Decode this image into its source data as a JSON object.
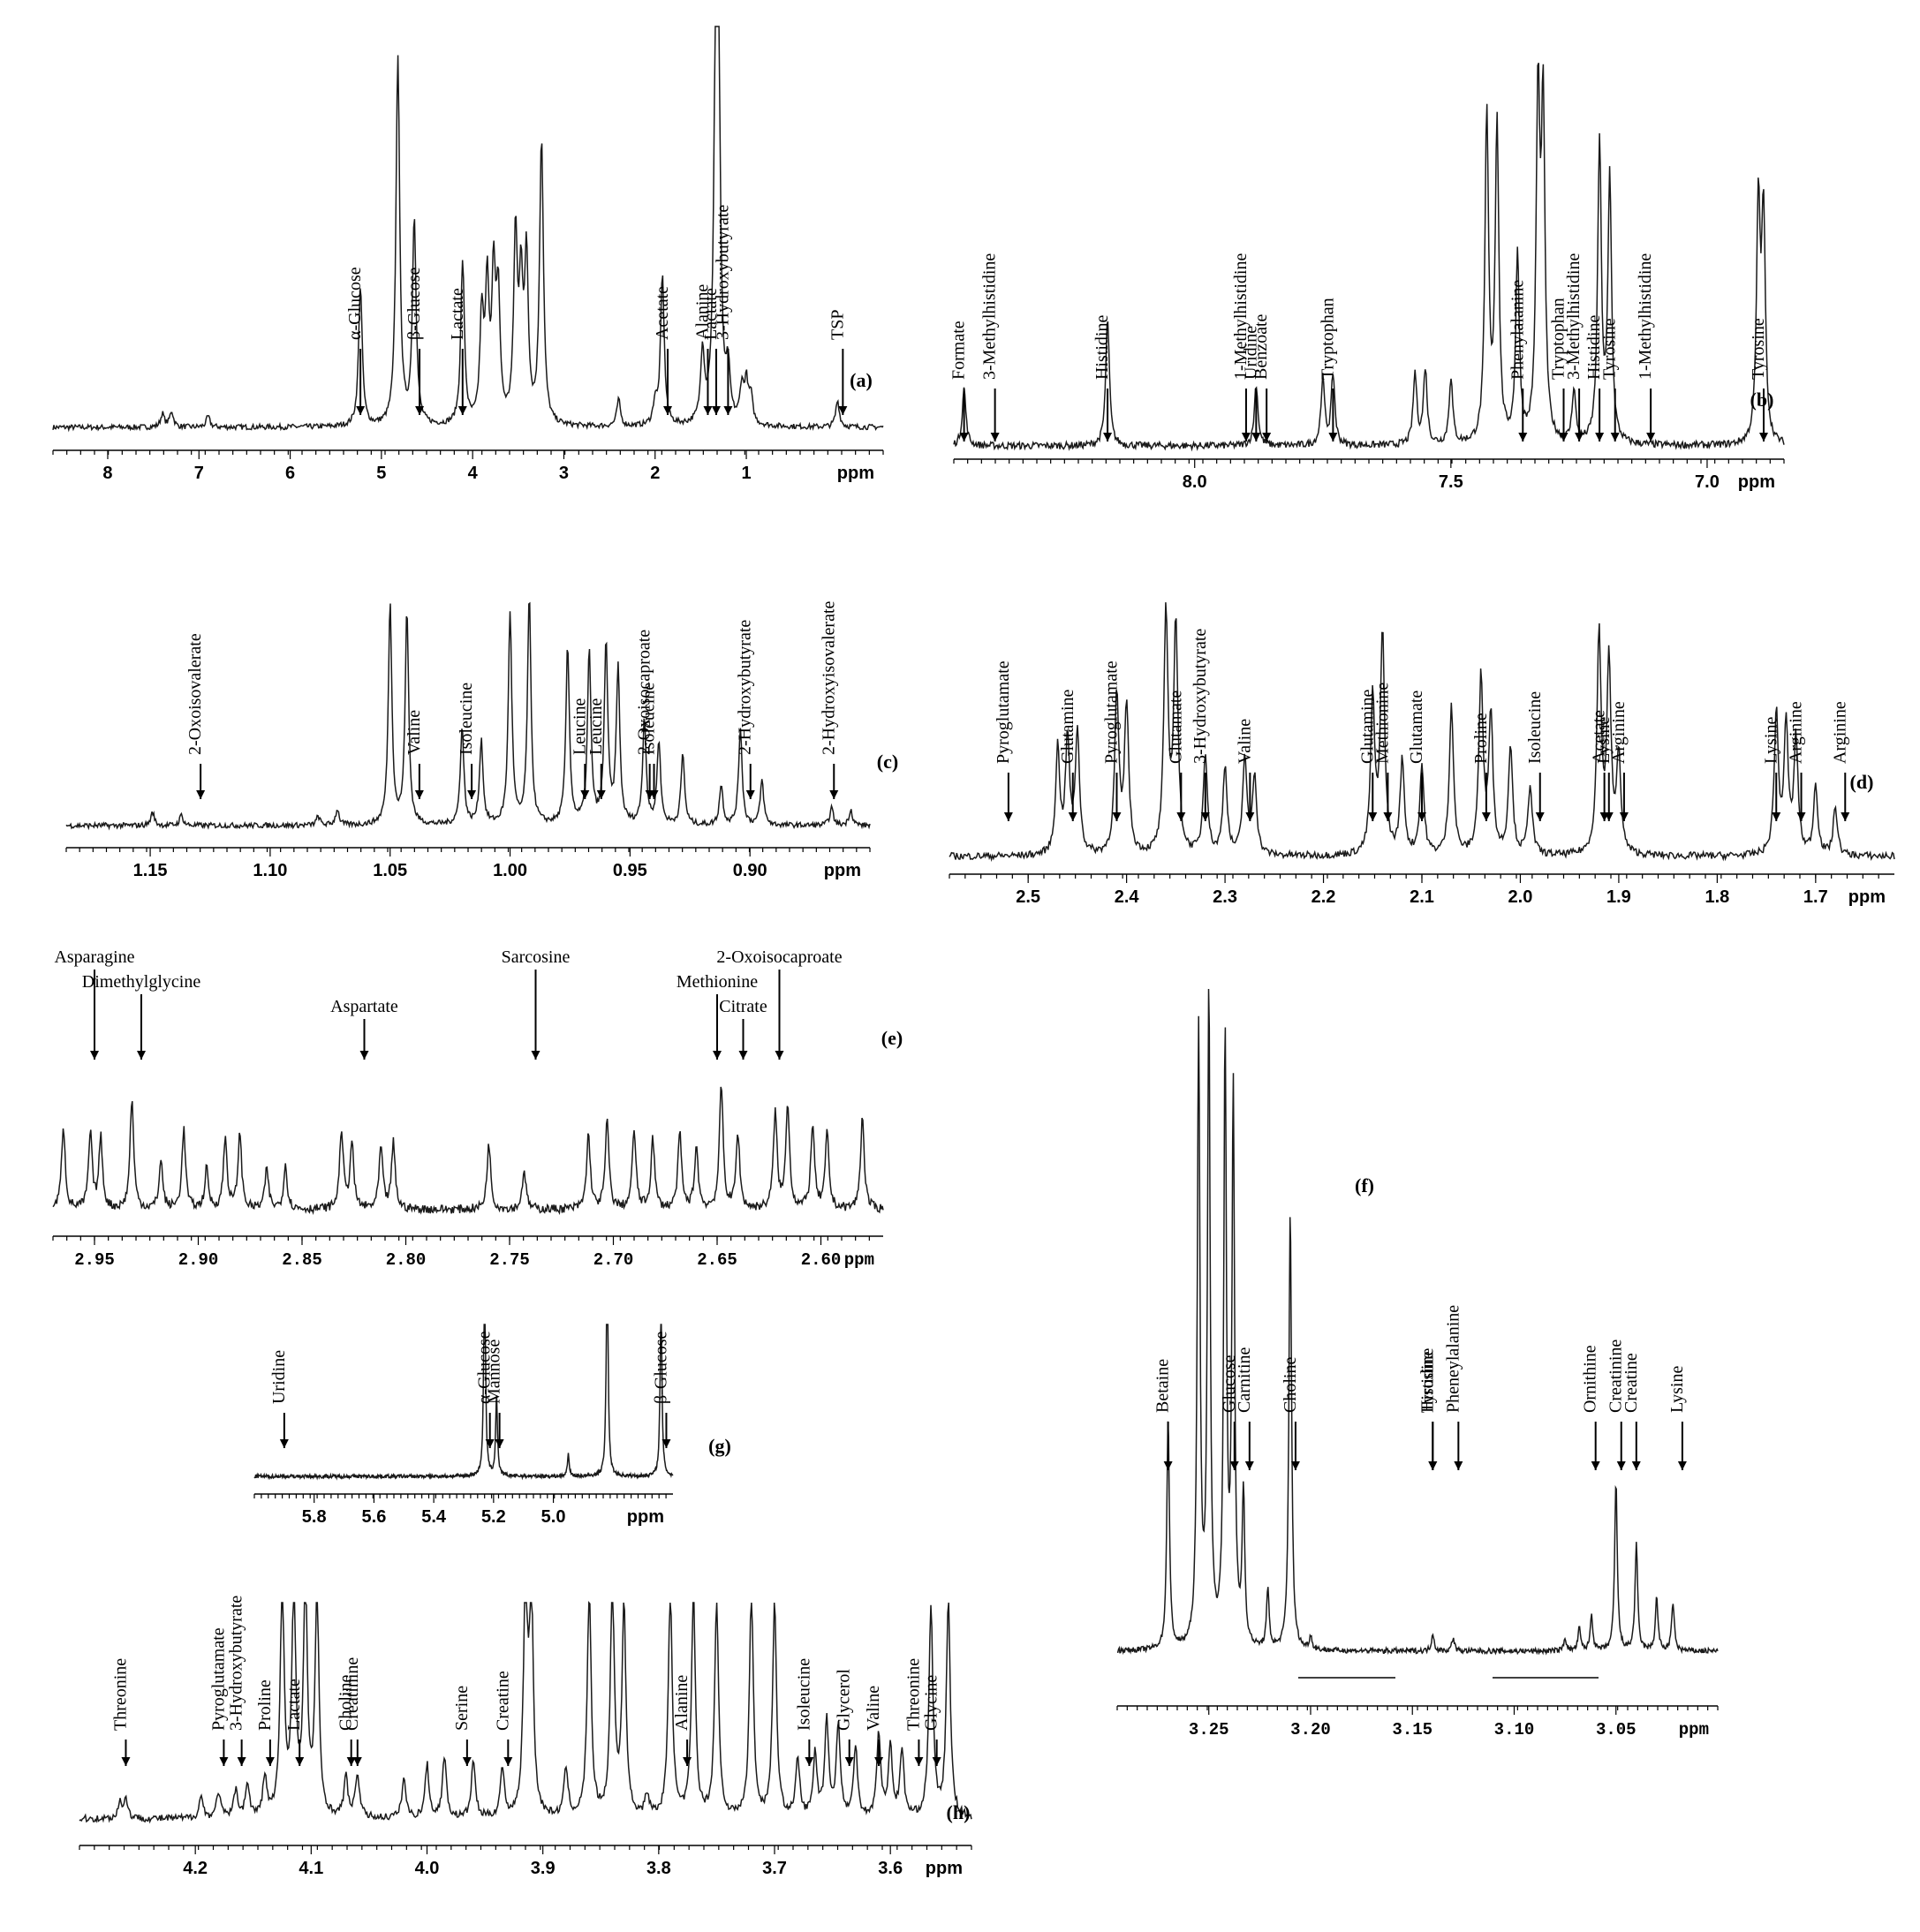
{
  "chart_data": [
    {
      "id": "a",
      "type": "line",
      "panel_label": "(a)",
      "xlabel": "ppm",
      "xlim": [
        8.6,
        -0.5
      ],
      "xticks": [
        8,
        7,
        6,
        5,
        4,
        3,
        2,
        1
      ],
      "annotations": [
        {
          "text": "α-Glucose",
          "x": 5.23
        },
        {
          "text": "β-Glucose",
          "x": 4.64
        },
        {
          "text": "Lactate",
          "x": 4.11
        },
        {
          "text": "Acetate",
          "x": 1.92
        },
        {
          "text": "Lactate",
          "x": 1.33
        },
        {
          "text": "Alanine",
          "x": 1.48
        },
        {
          "text": "3-Hydroxybutyrate",
          "x": 1.2
        },
        {
          "text": "TSP",
          "x": 0.0
        }
      ]
    },
    {
      "id": "b",
      "type": "line",
      "panel_label": "(b)",
      "xlabel": "ppm",
      "xlim": [
        8.47,
        6.85
      ],
      "xticks": [
        8.0,
        7.5,
        7.0
      ],
      "annotations": [
        {
          "text": "Formate",
          "x": 8.45
        },
        {
          "text": "3-Methylhistidine",
          "x": 8.4
        },
        {
          "text": "Histidine",
          "x": 8.17
        },
        {
          "text": "1-Methylhistidine",
          "x": 7.91
        },
        {
          "text": "Uridine",
          "x": 7.88
        },
        {
          "text": "Benzoate",
          "x": 7.87
        },
        {
          "text": "Tryptophan",
          "x": 7.73
        },
        {
          "text": "Phenylalanine",
          "x": 7.37
        },
        {
          "text": "Tryptophan",
          "x": 7.28
        },
        {
          "text": "3-Methylhistidine",
          "x": 7.26
        },
        {
          "text": "Histidine",
          "x": 7.21
        },
        {
          "text": "Tyrosine",
          "x": 7.19
        },
        {
          "text": "1-Methylhistidine",
          "x": 7.11
        },
        {
          "text": "Tyrosine",
          "x": 6.9
        }
      ]
    },
    {
      "id": "c",
      "type": "line",
      "panel_label": "(c)",
      "xlabel": "ppm",
      "xlim": [
        1.185,
        0.85
      ],
      "xticks": [
        1.15,
        1.1,
        1.05,
        1.0,
        0.95,
        0.9
      ],
      "annotations": [
        {
          "text": "2-Oxoisovalerate",
          "x": 1.129
        },
        {
          "text": "Valine",
          "x": 1.04
        },
        {
          "text": "Isoleucine",
          "x": 1.016
        },
        {
          "text": "Leucine",
          "x": 0.971
        },
        {
          "text": "Leucine",
          "x": 0.962
        },
        {
          "text": "2-Oxoisocaproate",
          "x": 0.944
        },
        {
          "text": "Isoleucine",
          "x": 0.94
        },
        {
          "text": "2-Hydroxybutyrate",
          "x": 0.902
        },
        {
          "text": "2-Hydroxyisovalerate",
          "x": 0.865
        }
      ]
    },
    {
      "id": "d",
      "type": "line",
      "panel_label": "(d)",
      "xlabel": "ppm",
      "xlim": [
        2.58,
        1.62
      ],
      "xticks": [
        2.5,
        2.4,
        2.3,
        2.2,
        2.1,
        2.0,
        1.9,
        1.8,
        1.7
      ],
      "annotations": [
        {
          "text": "Pyroglutamate",
          "x": 2.52
        },
        {
          "text": "Glutamine",
          "x": 2.46
        },
        {
          "text": "Pyroglutamate",
          "x": 2.41
        },
        {
          "text": "Glutamate",
          "x": 2.35
        },
        {
          "text": "3-Hydroxybutyrate",
          "x": 2.32
        },
        {
          "text": "Valine",
          "x": 2.28
        },
        {
          "text": "Glutamine",
          "x": 2.15
        },
        {
          "text": "Methionine",
          "x": 2.14
        },
        {
          "text": "Glutamate",
          "x": 2.1
        },
        {
          "text": "Proline",
          "x": 2.04
        },
        {
          "text": "Isoleucine",
          "x": 1.98
        },
        {
          "text": "Acetate",
          "x": 1.92
        },
        {
          "text": "Lysine",
          "x": 1.91
        },
        {
          "text": "Arginine",
          "x": 1.9
        },
        {
          "text": "Lysine",
          "x": 1.74
        },
        {
          "text": "Arginine",
          "x": 1.72
        },
        {
          "text": "Arginine",
          "x": 1.67
        }
      ]
    },
    {
      "id": "e",
      "type": "line",
      "panel_label": "(e)",
      "xlabel": "ppm",
      "xlim": [
        2.97,
        2.57
      ],
      "xticks": [
        2.95,
        2.9,
        2.85,
        2.8,
        2.75,
        2.7,
        2.65,
        2.6
      ],
      "annotations": [
        {
          "text": "Asparagine",
          "x": 2.95
        },
        {
          "text": "Dimethylglycine",
          "x": 2.93
        },
        {
          "text": "Aspartate",
          "x": 2.82
        },
        {
          "text": "Sarcosine",
          "x": 2.74
        },
        {
          "text": "Methionine",
          "x": 2.65
        },
        {
          "text": "Citrate",
          "x": 2.64
        },
        {
          "text": "2-Oxoisocaproate",
          "x": 2.62
        }
      ]
    },
    {
      "id": "f",
      "type": "line",
      "panel_label": "(f)",
      "xlabel": "ppm",
      "xlim": [
        3.295,
        3.0
      ],
      "xticks": [
        3.25,
        3.2,
        3.15,
        3.1,
        3.05
      ],
      "annotations": [
        {
          "text": "Betaine",
          "x": 3.27
        },
        {
          "text": "Glucose",
          "x": 3.24
        },
        {
          "text": "Carnitine",
          "x": 3.23
        },
        {
          "text": "Choline",
          "x": 3.21
        },
        {
          "text": "Histidine",
          "x": 3.14
        },
        {
          "text": "Pheneylalanine",
          "x": 3.13
        },
        {
          "text": "Ornithine",
          "x": 3.06
        },
        {
          "text": "Creatinine",
          "x": 3.05
        },
        {
          "text": "Creatine",
          "x": 3.04
        },
        {
          "text": "Lysine",
          "x": 3.02
        },
        {
          "text": "Tyrosine",
          "x": 3.14
        }
      ]
    },
    {
      "id": "g",
      "type": "line",
      "panel_label": "(g)",
      "xlabel": "ppm",
      "xlim": [
        6.0,
        4.6
      ],
      "xticks": [
        5.8,
        5.6,
        5.4,
        5.2,
        5.0
      ],
      "annotations": [
        {
          "text": "Uridine",
          "x": 5.9
        },
        {
          "text": "α-Glucose",
          "x": 5.23
        },
        {
          "text": "Mannose",
          "x": 5.18
        },
        {
          "text": "β-Glucose",
          "x": 4.64
        }
      ]
    },
    {
      "id": "h",
      "type": "line",
      "panel_label": "(h)",
      "xlabel": "ppm",
      "xlim": [
        4.3,
        3.53
      ],
      "xticks": [
        4.2,
        4.1,
        4.0,
        3.9,
        3.8,
        3.7,
        3.6
      ],
      "annotations": [
        {
          "text": "Threonine",
          "x": 4.26
        },
        {
          "text": "Pyroglutamate",
          "x": 4.18
        },
        {
          "text": "3-Hydroxybutyrate",
          "x": 4.16
        },
        {
          "text": "Proline",
          "x": 4.14
        },
        {
          "text": "Lactate",
          "x": 4.11
        },
        {
          "text": "Choline",
          "x": 4.07
        },
        {
          "text": "Creatinine",
          "x": 4.06
        },
        {
          "text": "Serine",
          "x": 3.97
        },
        {
          "text": "Creatine",
          "x": 3.93
        },
        {
          "text": "Alanine",
          "x": 3.78
        },
        {
          "text": "Isoleucine",
          "x": 3.67
        },
        {
          "text": "Glycerol",
          "x": 3.64
        },
        {
          "text": "Valine",
          "x": 3.61
        },
        {
          "text": "Threonine",
          "x": 3.58
        },
        {
          "text": "Glycine",
          "x": 3.56
        }
      ]
    }
  ]
}
